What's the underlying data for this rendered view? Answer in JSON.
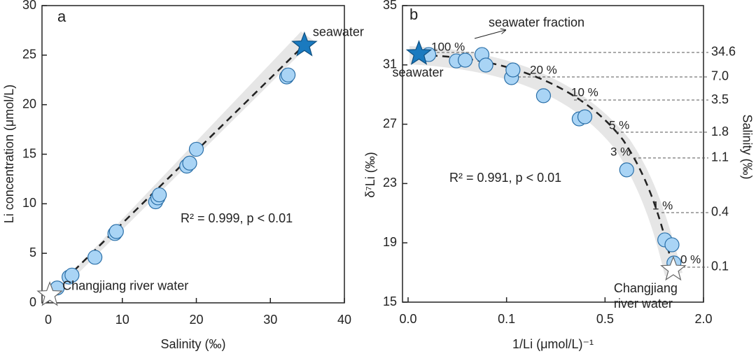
{
  "chart_data": [
    {
      "type": "scatter",
      "panel": "a",
      "xlabel": "Salinity (‰)",
      "ylabel": "Li concentration (μmol/L)",
      "xlim": [
        0,
        40
      ],
      "xticks": [
        0,
        10,
        20,
        30,
        40
      ],
      "ylim": [
        0,
        30
      ],
      "yticks": [
        0,
        5,
        10,
        15,
        20,
        25,
        30
      ],
      "x": [
        1.2,
        2.8,
        3.2,
        6.3,
        9.0,
        9.2,
        14.5,
        14.8,
        15.0,
        18.7,
        19.1,
        20.0,
        32.2,
        32.4
      ],
      "y": [
        1.5,
        2.6,
        2.8,
        4.6,
        7.0,
        7.2,
        10.2,
        10.6,
        10.9,
        13.8,
        14.1,
        15.5,
        22.8,
        23.0
      ],
      "color": "#a9d4f5",
      "points": [
        {
          "label": [
            "seawater"
          ],
          "x": 34.6,
          "y": 26.0,
          "color": "#1a7abf"
        },
        {
          "label": [
            "Changjiang river water"
          ],
          "x": 0.2,
          "y": 0.8,
          "color": "#ffffff"
        }
      ],
      "annotation": "R² = 0.999, p < 0.01"
    },
    {
      "type": "scatter",
      "panel": "b",
      "xlabel": "1/Li (μmol/L)⁻¹",
      "ylabel": "δ⁷Li (‰)",
      "y2label": "Salinity (‰)",
      "xlim": [
        0,
        2.0
      ],
      "xticks": [
        {
          "value": 0,
          "label": "0.0"
        },
        0.1,
        0.5,
        {
          "value": 2.0,
          "label": "2.0"
        }
      ],
      "ylim": [
        15,
        35
      ],
      "yticks": [
        15,
        19,
        23,
        27,
        31,
        35
      ],
      "x": [
        0.021,
        0.049,
        0.058,
        0.075,
        0.079,
        0.12,
        0.126,
        0.25,
        0.395,
        0.418,
        0.83,
        1.41,
        1.52,
        1.55
      ],
      "y": [
        31.7,
        31.27,
        31.32,
        31.7,
        30.99,
        30.14,
        30.66,
        28.92,
        27.36,
        27.5,
        23.92,
        19.2,
        18.87,
        17.64
      ],
      "color": "#a9d4f5",
      "points": [
        {
          "label": [
            "seawater"
          ],
          "x": 0.011,
          "y": 31.75,
          "color": "#1a7abf"
        },
        {
          "label": [
            "Changjiang",
            "river water"
          ],
          "x": 1.54,
          "y": 17.2,
          "color": "#ffffff"
        }
      ],
      "salinity_ticks": [
        {
          "value": 34.6,
          "label": "34.6",
          "y": 31.84
        },
        {
          "value": 7,
          "label": "7.0",
          "y": 30.19
        },
        {
          "value": 3.5,
          "label": "3.5",
          "y": 28.63
        },
        {
          "value": 1.8,
          "label": "1.8",
          "y": 26.46
        },
        {
          "value": 1.1,
          "label": "1.1",
          "y": 24.72
        },
        {
          "value": 0.4,
          "label": "0.4",
          "y": 21.04
        },
        {
          "value": 0.1,
          "label": "0.1",
          "y": 17.36
        }
      ],
      "fractions": [
        "100 %",
        "20 %",
        "10 %",
        "5 %",
        "3 %",
        "1 %",
        "0 %"
      ],
      "fraction_title": "seawater fraction",
      "annotation": "R² = 0.991, p < 0.01"
    }
  ]
}
